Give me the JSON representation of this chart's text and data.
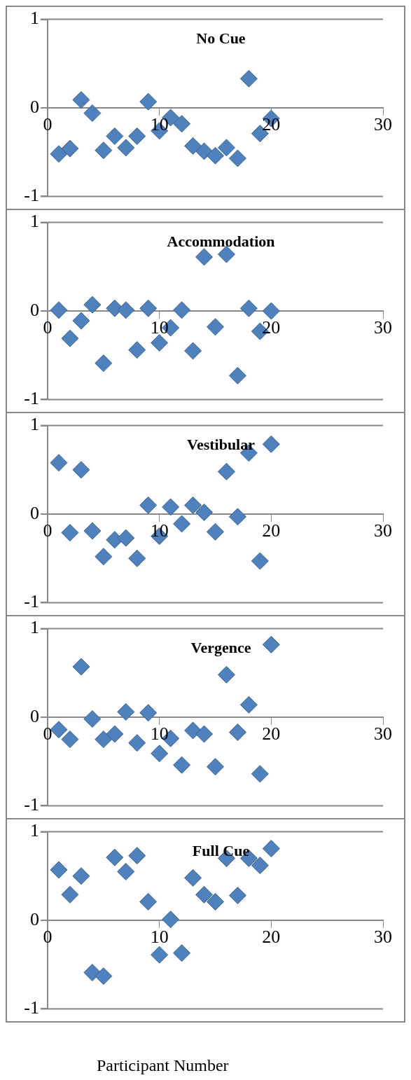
{
  "chart_data": [
    {
      "type": "scatter",
      "title": "No Cue",
      "x": [
        1,
        2,
        3,
        4,
        5,
        6,
        7,
        8,
        9,
        10,
        11,
        12,
        13,
        14,
        15,
        16,
        17,
        18,
        19,
        20
      ],
      "series": [
        {
          "color": "#4f81bd",
          "values": [
            -0.52,
            -0.46,
            0.09,
            -0.06,
            -0.48,
            -0.32,
            -0.45,
            -0.32,
            0.07,
            -0.26,
            -0.11,
            -0.18,
            -0.43,
            -0.49,
            -0.54,
            -0.45,
            -0.57,
            0.33,
            -0.29,
            -0.12
          ]
        }
      ],
      "xlim": [
        0,
        30
      ],
      "xticks": [
        0,
        10,
        20,
        30
      ],
      "ylim": [
        -1,
        1
      ],
      "yticks": [
        -1,
        0,
        1
      ],
      "legend": false,
      "marker": "diamond"
    },
    {
      "type": "scatter",
      "title": "Accommodation",
      "x": [
        1,
        2,
        3,
        4,
        5,
        6,
        7,
        8,
        9,
        10,
        11,
        12,
        13,
        14,
        15,
        16,
        17,
        18,
        19,
        20
      ],
      "series": [
        {
          "color": "#4f81bd",
          "values": [
            0.01,
            -0.31,
            -0.11,
            0.07,
            -0.59,
            0.03,
            0.01,
            -0.44,
            0.03,
            -0.36,
            -0.19,
            0.01,
            -0.45,
            0.61,
            -0.18,
            0.64,
            -0.73,
            0.03,
            -0.23,
            0.0
          ]
        }
      ],
      "xlim": [
        0,
        30
      ],
      "xticks": [
        0,
        10,
        20,
        30
      ],
      "ylim": [
        -1,
        1
      ],
      "yticks": [
        -1,
        0,
        1
      ],
      "legend": false,
      "marker": "diamond"
    },
    {
      "type": "scatter",
      "title": "Vestibular",
      "x": [
        1,
        2,
        3,
        4,
        5,
        6,
        7,
        8,
        9,
        10,
        11,
        12,
        13,
        14,
        15,
        16,
        17,
        18,
        19,
        20
      ],
      "series": [
        {
          "color": "#4f81bd",
          "values": [
            0.58,
            -0.21,
            0.5,
            -0.19,
            -0.48,
            -0.29,
            -0.27,
            -0.5,
            0.1,
            -0.25,
            0.08,
            -0.11,
            0.1,
            0.02,
            -0.2,
            0.48,
            -0.03,
            0.69,
            -0.53,
            0.79
          ]
        }
      ],
      "xlim": [
        0,
        30
      ],
      "xticks": [
        0,
        10,
        20,
        30
      ],
      "ylim": [
        -1,
        1
      ],
      "yticks": [
        -1,
        0,
        1
      ],
      "legend": false,
      "marker": "diamond"
    },
    {
      "type": "scatter",
      "title": "Vergence",
      "x": [
        1,
        2,
        3,
        4,
        5,
        6,
        7,
        8,
        9,
        10,
        11,
        12,
        13,
        14,
        15,
        16,
        17,
        18,
        19,
        20
      ],
      "series": [
        {
          "color": "#4f81bd",
          "values": [
            -0.14,
            -0.25,
            0.57,
            -0.02,
            -0.25,
            -0.19,
            0.06,
            -0.29,
            0.05,
            -0.41,
            -0.24,
            -0.54,
            -0.15,
            -0.19,
            -0.56,
            0.48,
            -0.17,
            0.14,
            -0.64,
            0.82
          ]
        }
      ],
      "xlim": [
        0,
        30
      ],
      "xticks": [
        0,
        10,
        20,
        30
      ],
      "ylim": [
        -1,
        1
      ],
      "yticks": [
        -1,
        0,
        1
      ],
      "legend": false,
      "marker": "diamond"
    },
    {
      "type": "scatter",
      "title": "Full Cue",
      "xlabel": "Participant Number",
      "x": [
        1,
        2,
        3,
        4,
        5,
        6,
        7,
        8,
        9,
        10,
        11,
        12,
        13,
        14,
        15,
        16,
        17,
        18,
        19,
        20
      ],
      "series": [
        {
          "color": "#4f81bd",
          "values": [
            0.57,
            0.29,
            0.5,
            -0.59,
            -0.63,
            0.71,
            0.55,
            0.73,
            0.21,
            -0.39,
            0.01,
            -0.37,
            0.48,
            0.29,
            0.21,
            0.7,
            0.28,
            0.7,
            0.62,
            0.81
          ]
        }
      ],
      "xlim": [
        0,
        30
      ],
      "xticks": [
        0,
        10,
        20,
        30
      ],
      "ylim": [
        -1,
        1
      ],
      "yticks": [
        -1,
        0,
        1
      ],
      "legend": false,
      "marker": "diamond"
    }
  ]
}
